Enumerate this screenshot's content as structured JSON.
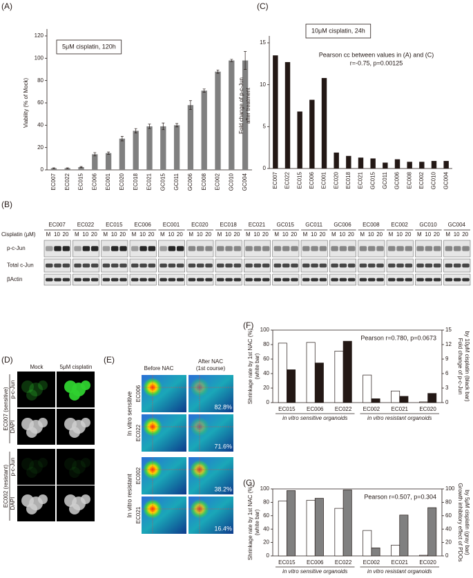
{
  "chart_data": [
    {
      "panel": "(A)",
      "type": "bar",
      "boxed_label": "5μM cisplatin, 120h",
      "ylabel": "Viability (% of Mock)",
      "categories": [
        "EC007",
        "EC022",
        "EC015",
        "EC006",
        "EC001",
        "EC020",
        "EC018",
        "EC021",
        "GC015",
        "GC011",
        "GC006",
        "EC008",
        "EC002",
        "GC010",
        "GC004"
      ],
      "series": [
        {
          "color": "#808080",
          "values": [
            1.5,
            1.5,
            2.5,
            14,
            15,
            28,
            35,
            39,
            39,
            40,
            58,
            71,
            88,
            98,
            98
          ],
          "errors": [
            0.4,
            0.4,
            0.5,
            1.5,
            1,
            2,
            2,
            2,
            3,
            1.5,
            4,
            1.5,
            1.5,
            1,
            8
          ]
        }
      ],
      "ylim": [
        0,
        120
      ],
      "yticks": [
        0,
        20,
        40,
        60,
        80,
        100,
        120
      ]
    },
    {
      "panel": "(C)",
      "type": "bar",
      "boxed_label": "10μM cisplatin, 24h",
      "notes": [
        "Pearson cc between values in (A) and (C)",
        "r=-0.75, p=0.00125"
      ],
      "ylabel": [
        "Fold change of p-c-Jun",
        "after treatment"
      ],
      "categories": [
        "EC007",
        "EC022",
        "EC015",
        "EC006",
        "EC001",
        "EC020",
        "EC018",
        "EC021",
        "GC015",
        "GC011",
        "GC006",
        "EC008",
        "EC002",
        "GC010",
        "GC004"
      ],
      "series": [
        {
          "color": "#231815",
          "values": [
            13.5,
            12.7,
            6.8,
            8.2,
            10.8,
            1.9,
            1.5,
            1.3,
            1.2,
            0.7,
            1.1,
            0.8,
            0.8,
            0.9,
            0.9
          ]
        }
      ],
      "ylim": [
        0,
        15
      ],
      "yticks": [
        0,
        5,
        10,
        15
      ]
    },
    {
      "panel": "(F)",
      "type": "bar",
      "notes": [
        "Pearson r=0.780, p=0.0673"
      ],
      "ylabel": [
        "Shrinkage rate by 1st NAC (%)",
        "(white bar)"
      ],
      "y2label": [
        "Fold change of p-c-Jun",
        "by 10μM cisplatin (black bar)"
      ],
      "categories": [
        "EC015",
        "EC006",
        "EC022",
        "EC002",
        "EC021",
        "EC020"
      ],
      "group_labels": [
        "in vitro sensitive organoids",
        "in vitro resistant organoids"
      ],
      "series": [
        {
          "color": "#ffffff",
          "values": [
            82,
            83,
            71,
            38,
            16,
            1
          ]
        },
        {
          "color": "#231815",
          "axis": "y2",
          "values": [
            6.8,
            8.2,
            12.7,
            0.8,
            1.3,
            1.9
          ]
        }
      ],
      "ylim": [
        0,
        100
      ],
      "yticks": [
        0,
        20,
        40,
        60,
        80,
        100
      ],
      "y2lim": [
        0,
        15
      ],
      "y2ticks": [
        0,
        3,
        6,
        9,
        12,
        15
      ]
    },
    {
      "panel": "(G)",
      "type": "bar",
      "notes": [
        "Pearson r=0.507, p=0.304"
      ],
      "ylabel": [
        "Shrinkage rate by 1st NAC (%)",
        "(white bar)"
      ],
      "y2label": [
        "Growth inhibitory effect of PDOs",
        "by 5μM cisplatin (gray bar)"
      ],
      "categories": [
        "EC015",
        "EC006",
        "EC022",
        "EC002",
        "EC021",
        "EC020"
      ],
      "group_labels": [
        "in vitro sensitive organoids",
        "in vitro resistant organoids"
      ],
      "series": [
        {
          "color": "#ffffff",
          "values": [
            82,
            83,
            71,
            38,
            16,
            1
          ]
        },
        {
          "color": "#808080",
          "axis": "y2",
          "values": [
            97.5,
            86,
            98.5,
            12,
            61,
            72
          ]
        }
      ],
      "ylim": [
        0,
        100
      ],
      "yticks": [
        0,
        20,
        40,
        60,
        80,
        100
      ],
      "y2lim": [
        0,
        100
      ],
      "y2ticks": [
        0,
        20,
        40,
        60,
        80,
        100
      ]
    }
  ],
  "blot": {
    "panel": "(B)",
    "samples": [
      "EC007",
      "EC022",
      "EC015",
      "EC006",
      "EC001",
      "EC020",
      "EC018",
      "EC021",
      "GC015",
      "GC011",
      "GC006",
      "EC008",
      "EC002",
      "GC010",
      "GC004"
    ],
    "dose_label": "Cisplatin (μM)",
    "doses": [
      "M",
      "10",
      "20"
    ],
    "rows": [
      "p-c-Jun",
      "Total c-Jun",
      "βActin"
    ]
  },
  "microscopy": {
    "panel": "(D)",
    "columns": [
      "Mock",
      "5μM cisplatin"
    ],
    "stains": [
      "p-c-Jun",
      "DAPI"
    ],
    "samples": [
      "EC007 (sensitive)",
      "EC002 (resistant)"
    ]
  },
  "pet": {
    "panel": "(E)",
    "columns": [
      "Before NAC",
      "After NAC",
      "(1st course)"
    ],
    "groups": [
      "In vitro sensitive",
      "In vitro resistant"
    ],
    "cases": [
      "EC006",
      "EC022",
      "EC002",
      "EC021"
    ],
    "shrinkage": [
      "82.8%",
      "71.6%",
      "38.2%",
      "16.4%"
    ]
  }
}
